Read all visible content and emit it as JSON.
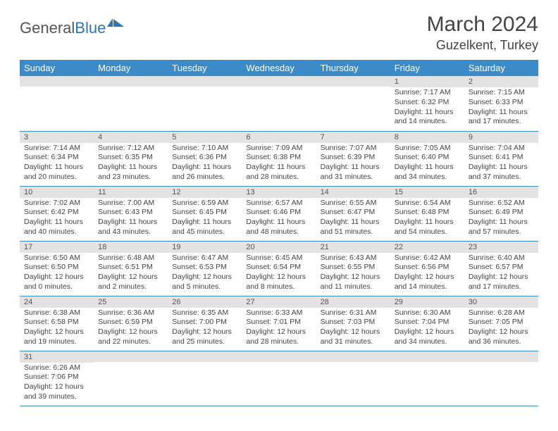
{
  "brand": {
    "part1": "General",
    "part2": "Blue"
  },
  "title": "March 2024",
  "location": "Guzelkent, Turkey",
  "colors": {
    "header_bg": "#3b8bc9",
    "header_text": "#ffffff",
    "daynum_bg": "#e3e3e3",
    "row_border": "#3b8bc9",
    "brand_blue": "#2e75b6",
    "body_text": "#444444"
  },
  "weekdays": [
    "Sunday",
    "Monday",
    "Tuesday",
    "Wednesday",
    "Thursday",
    "Friday",
    "Saturday"
  ],
  "weeks": [
    [
      {
        "n": "",
        "sr": "",
        "ss": "",
        "dl": ""
      },
      {
        "n": "",
        "sr": "",
        "ss": "",
        "dl": ""
      },
      {
        "n": "",
        "sr": "",
        "ss": "",
        "dl": ""
      },
      {
        "n": "",
        "sr": "",
        "ss": "",
        "dl": ""
      },
      {
        "n": "",
        "sr": "",
        "ss": "",
        "dl": ""
      },
      {
        "n": "1",
        "sr": "Sunrise: 7:17 AM",
        "ss": "Sunset: 6:32 PM",
        "dl": "Daylight: 11 hours and 14 minutes."
      },
      {
        "n": "2",
        "sr": "Sunrise: 7:15 AM",
        "ss": "Sunset: 6:33 PM",
        "dl": "Daylight: 11 hours and 17 minutes."
      }
    ],
    [
      {
        "n": "3",
        "sr": "Sunrise: 7:14 AM",
        "ss": "Sunset: 6:34 PM",
        "dl": "Daylight: 11 hours and 20 minutes."
      },
      {
        "n": "4",
        "sr": "Sunrise: 7:12 AM",
        "ss": "Sunset: 6:35 PM",
        "dl": "Daylight: 11 hours and 23 minutes."
      },
      {
        "n": "5",
        "sr": "Sunrise: 7:10 AM",
        "ss": "Sunset: 6:36 PM",
        "dl": "Daylight: 11 hours and 26 minutes."
      },
      {
        "n": "6",
        "sr": "Sunrise: 7:09 AM",
        "ss": "Sunset: 6:38 PM",
        "dl": "Daylight: 11 hours and 28 minutes."
      },
      {
        "n": "7",
        "sr": "Sunrise: 7:07 AM",
        "ss": "Sunset: 6:39 PM",
        "dl": "Daylight: 11 hours and 31 minutes."
      },
      {
        "n": "8",
        "sr": "Sunrise: 7:05 AM",
        "ss": "Sunset: 6:40 PM",
        "dl": "Daylight: 11 hours and 34 minutes."
      },
      {
        "n": "9",
        "sr": "Sunrise: 7:04 AM",
        "ss": "Sunset: 6:41 PM",
        "dl": "Daylight: 11 hours and 37 minutes."
      }
    ],
    [
      {
        "n": "10",
        "sr": "Sunrise: 7:02 AM",
        "ss": "Sunset: 6:42 PM",
        "dl": "Daylight: 11 hours and 40 minutes."
      },
      {
        "n": "11",
        "sr": "Sunrise: 7:00 AM",
        "ss": "Sunset: 6:43 PM",
        "dl": "Daylight: 11 hours and 43 minutes."
      },
      {
        "n": "12",
        "sr": "Sunrise: 6:59 AM",
        "ss": "Sunset: 6:45 PM",
        "dl": "Daylight: 11 hours and 45 minutes."
      },
      {
        "n": "13",
        "sr": "Sunrise: 6:57 AM",
        "ss": "Sunset: 6:46 PM",
        "dl": "Daylight: 11 hours and 48 minutes."
      },
      {
        "n": "14",
        "sr": "Sunrise: 6:55 AM",
        "ss": "Sunset: 6:47 PM",
        "dl": "Daylight: 11 hours and 51 minutes."
      },
      {
        "n": "15",
        "sr": "Sunrise: 6:54 AM",
        "ss": "Sunset: 6:48 PM",
        "dl": "Daylight: 11 hours and 54 minutes."
      },
      {
        "n": "16",
        "sr": "Sunrise: 6:52 AM",
        "ss": "Sunset: 6:49 PM",
        "dl": "Daylight: 11 hours and 57 minutes."
      }
    ],
    [
      {
        "n": "17",
        "sr": "Sunrise: 6:50 AM",
        "ss": "Sunset: 6:50 PM",
        "dl": "Daylight: 12 hours and 0 minutes."
      },
      {
        "n": "18",
        "sr": "Sunrise: 6:48 AM",
        "ss": "Sunset: 6:51 PM",
        "dl": "Daylight: 12 hours and 2 minutes."
      },
      {
        "n": "19",
        "sr": "Sunrise: 6:47 AM",
        "ss": "Sunset: 6:53 PM",
        "dl": "Daylight: 12 hours and 5 minutes."
      },
      {
        "n": "20",
        "sr": "Sunrise: 6:45 AM",
        "ss": "Sunset: 6:54 PM",
        "dl": "Daylight: 12 hours and 8 minutes."
      },
      {
        "n": "21",
        "sr": "Sunrise: 6:43 AM",
        "ss": "Sunset: 6:55 PM",
        "dl": "Daylight: 12 hours and 11 minutes."
      },
      {
        "n": "22",
        "sr": "Sunrise: 6:42 AM",
        "ss": "Sunset: 6:56 PM",
        "dl": "Daylight: 12 hours and 14 minutes."
      },
      {
        "n": "23",
        "sr": "Sunrise: 6:40 AM",
        "ss": "Sunset: 6:57 PM",
        "dl": "Daylight: 12 hours and 17 minutes."
      }
    ],
    [
      {
        "n": "24",
        "sr": "Sunrise: 6:38 AM",
        "ss": "Sunset: 6:58 PM",
        "dl": "Daylight: 12 hours and 19 minutes."
      },
      {
        "n": "25",
        "sr": "Sunrise: 6:36 AM",
        "ss": "Sunset: 6:59 PM",
        "dl": "Daylight: 12 hours and 22 minutes."
      },
      {
        "n": "26",
        "sr": "Sunrise: 6:35 AM",
        "ss": "Sunset: 7:00 PM",
        "dl": "Daylight: 12 hours and 25 minutes."
      },
      {
        "n": "27",
        "sr": "Sunrise: 6:33 AM",
        "ss": "Sunset: 7:01 PM",
        "dl": "Daylight: 12 hours and 28 minutes."
      },
      {
        "n": "28",
        "sr": "Sunrise: 6:31 AM",
        "ss": "Sunset: 7:03 PM",
        "dl": "Daylight: 12 hours and 31 minutes."
      },
      {
        "n": "29",
        "sr": "Sunrise: 6:30 AM",
        "ss": "Sunset: 7:04 PM",
        "dl": "Daylight: 12 hours and 34 minutes."
      },
      {
        "n": "30",
        "sr": "Sunrise: 6:28 AM",
        "ss": "Sunset: 7:05 PM",
        "dl": "Daylight: 12 hours and 36 minutes."
      }
    ],
    [
      {
        "n": "31",
        "sr": "Sunrise: 6:26 AM",
        "ss": "Sunset: 7:06 PM",
        "dl": "Daylight: 12 hours and 39 minutes."
      },
      {
        "n": "",
        "sr": "",
        "ss": "",
        "dl": ""
      },
      {
        "n": "",
        "sr": "",
        "ss": "",
        "dl": ""
      },
      {
        "n": "",
        "sr": "",
        "ss": "",
        "dl": ""
      },
      {
        "n": "",
        "sr": "",
        "ss": "",
        "dl": ""
      },
      {
        "n": "",
        "sr": "",
        "ss": "",
        "dl": ""
      },
      {
        "n": "",
        "sr": "",
        "ss": "",
        "dl": ""
      }
    ]
  ]
}
